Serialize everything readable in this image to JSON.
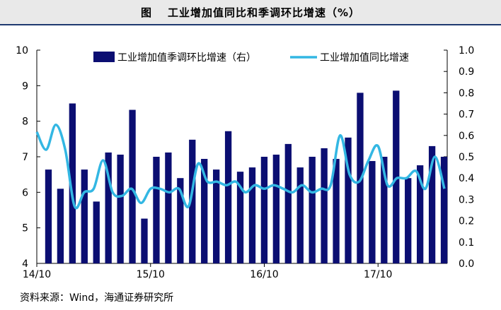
{
  "title": {
    "fig_label": "图",
    "text": "工业增加值同比和季调环比增速（%）"
  },
  "source": "资料来源：Wind，海通证券研究所",
  "chart_data": {
    "type": "bar+line",
    "x_tick_labels": [
      "14/10",
      "15/10",
      "16/10",
      "17/10"
    ],
    "x_tick_index": [
      0,
      12,
      24,
      36
    ],
    "left_axis": {
      "min": 4,
      "max": 10,
      "ticks": [
        "4",
        "5",
        "6",
        "7",
        "8",
        "9",
        "10"
      ]
    },
    "right_axis": {
      "min": 0.0,
      "max": 1.0,
      "ticks": [
        "0.0",
        "0.1",
        "0.2",
        "0.3",
        "0.4",
        "0.5",
        "0.6",
        "0.7",
        "0.8",
        "0.9",
        "1.0"
      ]
    },
    "series": [
      {
        "name": "工业增加值季调环比增速（右）",
        "type": "bar",
        "axis": "right",
        "color": "#0b0e72",
        "values": [
          0.44,
          0.35,
          0.75,
          0.44,
          0.29,
          0.52,
          0.51,
          0.72,
          0.21,
          0.5,
          0.52,
          0.4,
          0.58,
          0.49,
          0.44,
          0.62,
          0.43,
          0.45,
          0.5,
          0.51,
          0.56,
          0.45,
          0.5,
          0.54,
          0.49,
          0.59,
          0.8,
          0.48,
          0.5,
          0.81,
          0.4,
          0.46,
          0.55,
          0.5
        ]
      },
      {
        "name": "工业增加值同比增速",
        "type": "line",
        "axis": "left",
        "color": "#33b7e3",
        "values": [
          7.7,
          7.2,
          7.9,
          7.2,
          5.6,
          6.0,
          6.1,
          6.9,
          6.0,
          5.9,
          6.1,
          5.7,
          6.1,
          6.1,
          6.0,
          6.1,
          5.6,
          6.8,
          6.3,
          6.3,
          6.2,
          6.3,
          6.0,
          6.2,
          6.1,
          6.2,
          6.1,
          6.0,
          6.2,
          6.0,
          6.1,
          6.2,
          7.6,
          6.5,
          6.3,
          6.9,
          7.3,
          6.2,
          6.4,
          6.4,
          6.6,
          6.1,
          7.0,
          6.1
        ]
      }
    ],
    "grid": false,
    "legend_position": "top"
  }
}
